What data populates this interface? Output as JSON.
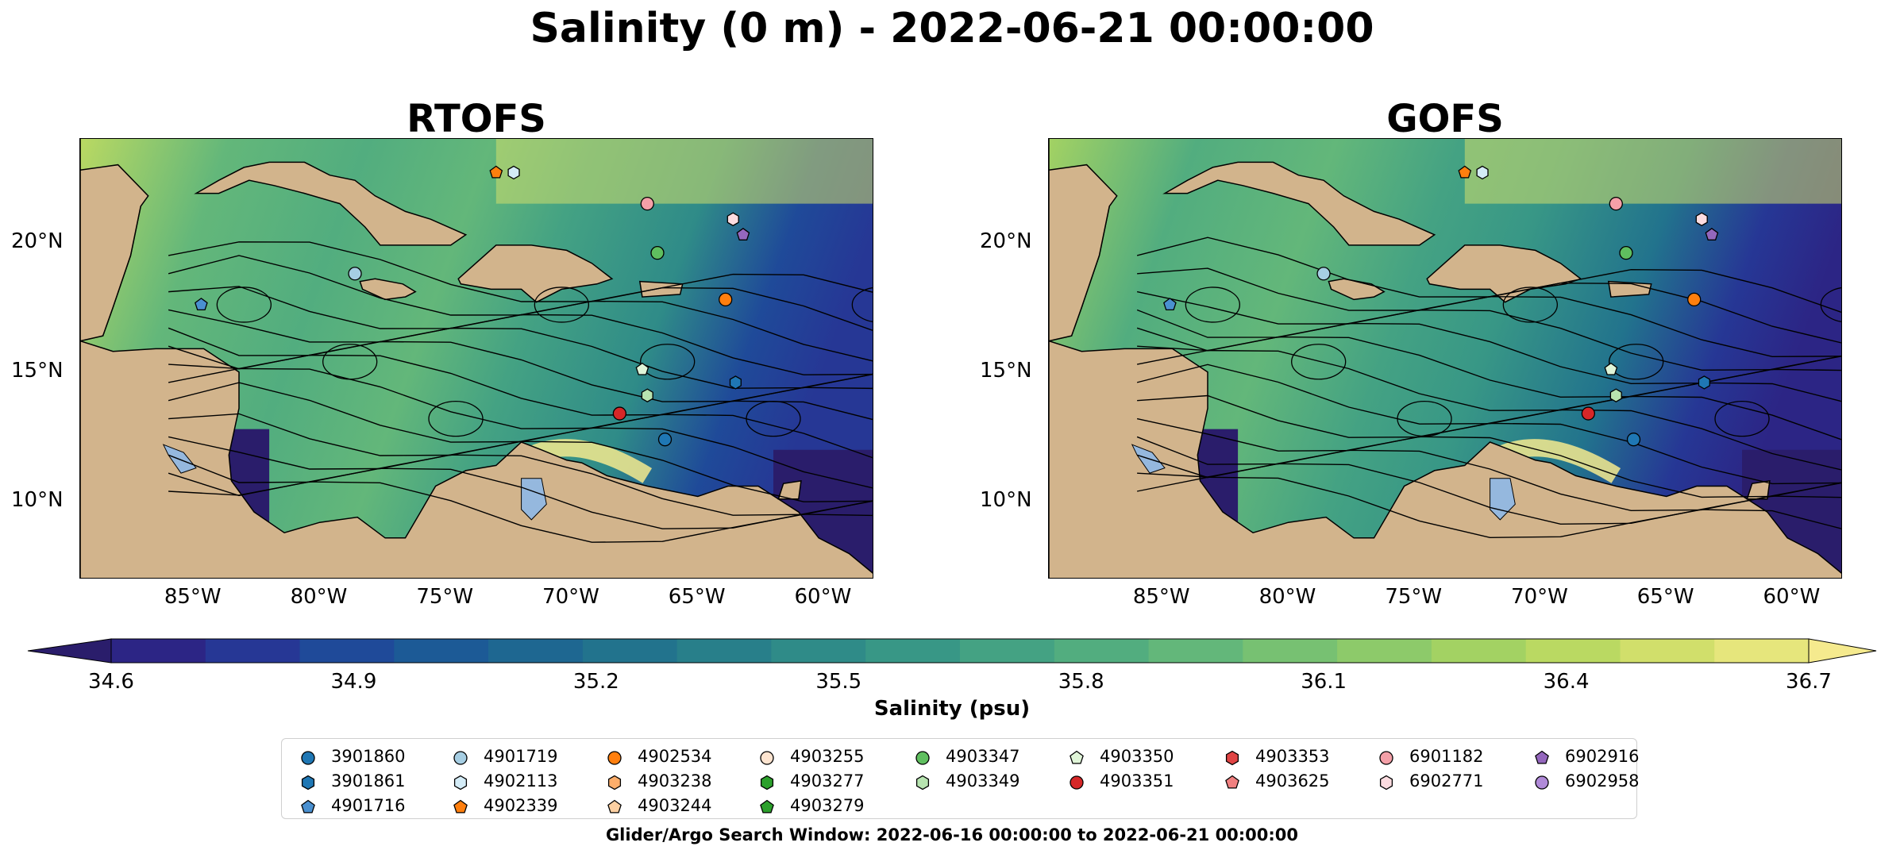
{
  "title": "Salinity (0 m) - 2022-06-21 00:00:00",
  "panels": [
    {
      "title": "RTOFS"
    },
    {
      "title": "GOFS"
    }
  ],
  "axes": {
    "x_ticks": [
      "85°W",
      "80°W",
      "75°W",
      "70°W",
      "65°W",
      "60°W"
    ],
    "y_ticks": [
      "20°N",
      "15°N",
      "10°N"
    ]
  },
  "colorbar": {
    "label": "Salinity (psu)",
    "ticks": [
      "34.6",
      "34.9",
      "35.2",
      "35.5",
      "35.8",
      "36.1",
      "36.4",
      "36.7"
    ],
    "colors": [
      "#2a1d6b",
      "#2c2585",
      "#263795",
      "#1f4a99",
      "#1c5a96",
      "#1e6791",
      "#22738d",
      "#287f8a",
      "#2f8b88",
      "#389786",
      "#44a283",
      "#52ad7f",
      "#63b77a",
      "#77c172",
      "#8dca6a",
      "#a3d263",
      "#bad962",
      "#d1df6b",
      "#e6e67c",
      "#f5ea8e"
    ]
  },
  "legend": {
    "items": [
      {
        "label": "3901860",
        "marker": "circle",
        "color": "#1f77b4"
      },
      {
        "label": "3901861",
        "marker": "hexagon",
        "color": "#1f77b4"
      },
      {
        "label": "4901716",
        "marker": "pentagon",
        "color": "#4a90d0"
      },
      {
        "label": "4901719",
        "marker": "circle",
        "color": "#a6cee3"
      },
      {
        "label": "4902113",
        "marker": "hexagon",
        "color": "#d4ecf7"
      },
      {
        "label": "4902339",
        "marker": "pentagon",
        "color": "#ff7f0e"
      },
      {
        "label": "4902534",
        "marker": "circle",
        "color": "#ff7f0e"
      },
      {
        "label": "4903238",
        "marker": "hexagon",
        "color": "#fdae6b"
      },
      {
        "label": "4903244",
        "marker": "pentagon",
        "color": "#fdd0a2"
      },
      {
        "label": "4903255",
        "marker": "circle",
        "color": "#fde4d0"
      },
      {
        "label": "4903277",
        "marker": "hexagon",
        "color": "#2ca02c"
      },
      {
        "label": "4903279",
        "marker": "pentagon",
        "color": "#2ca02c"
      },
      {
        "label": "4903347",
        "marker": "circle",
        "color": "#5fbf5f"
      },
      {
        "label": "4903349",
        "marker": "hexagon",
        "color": "#b7e4b0"
      },
      {
        "label": "4903350",
        "marker": "pentagon",
        "color": "#e0f5d8"
      },
      {
        "label": "4903351",
        "marker": "circle",
        "color": "#d62728"
      },
      {
        "label": "4903353",
        "marker": "hexagon",
        "color": "#e04444"
      },
      {
        "label": "4903625",
        "marker": "pentagon",
        "color": "#f08080"
      },
      {
        "label": "6901182",
        "marker": "circle",
        "color": "#f4a0a8"
      },
      {
        "label": "6902771",
        "marker": "hexagon",
        "color": "#fcdce0"
      },
      {
        "label": "6902916",
        "marker": "pentagon",
        "color": "#9467bd"
      },
      {
        "label": "6902958",
        "marker": "circle",
        "color": "#b08ad8"
      }
    ]
  },
  "footnote": "Glider/Argo Search Window: 2022-06-16 00:00:00 to 2022-06-21 00:00:00",
  "chart_data": {
    "type": "heatmap",
    "title": "Salinity (0 m) - 2022-06-21 00:00:00",
    "subplots": [
      "RTOFS",
      "GOFS"
    ],
    "xlabel": "",
    "ylabel": "",
    "xlim": [
      -89.5,
      -58
    ],
    "ylim": [
      7,
      24
    ],
    "x_ticks": [
      -85,
      -80,
      -75,
      -70,
      -65,
      -60
    ],
    "y_ticks": [
      20,
      15,
      10
    ],
    "colorbar_range": [
      34.6,
      36.7
    ],
    "colorbar_label": "Salinity (psu)",
    "colormap": "haline",
    "extend": "both",
    "floats": [
      {
        "id": "3901860",
        "lon": -66.3,
        "lat": 12.4
      },
      {
        "id": "4901716",
        "lon": -84.7,
        "lat": 17.6
      },
      {
        "id": "4901719",
        "lon": -78.6,
        "lat": 18.8
      },
      {
        "id": "4902113",
        "lon": -72.3,
        "lat": 22.7
      },
      {
        "id": "4902339",
        "lon": -73.0,
        "lat": 22.7
      },
      {
        "id": "4902534",
        "lon": -63.9,
        "lat": 17.8
      },
      {
        "id": "4903347",
        "lon": -66.6,
        "lat": 19.6
      },
      {
        "id": "4903349",
        "lon": -67.0,
        "lat": 14.1
      },
      {
        "id": "4903350",
        "lon": -67.2,
        "lat": 15.1
      },
      {
        "id": "4903351",
        "lon": -68.1,
        "lat": 13.4
      },
      {
        "id": "6901182",
        "lon": -67.0,
        "lat": 21.5
      },
      {
        "id": "6902771",
        "lon": -63.6,
        "lat": 20.9
      },
      {
        "id": "6902916",
        "lon": -63.2,
        "lat": 20.3
      },
      {
        "id": "3901861",
        "lon": -63.5,
        "lat": 14.6
      }
    ]
  }
}
